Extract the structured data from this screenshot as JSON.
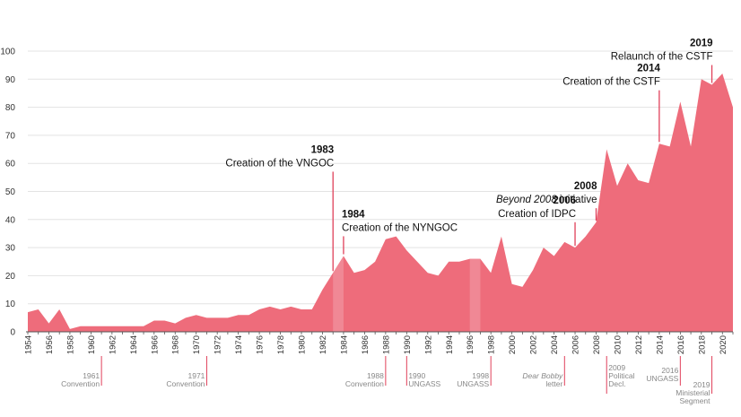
{
  "chart_data": {
    "type": "area",
    "title": "",
    "xlabel": "",
    "ylabel": "",
    "xlim": [
      1954,
      2021
    ],
    "ylim": [
      0,
      100
    ],
    "yticks": [
      0,
      10,
      20,
      30,
      40,
      50,
      60,
      70,
      80,
      90,
      100
    ],
    "xticks": [
      1954,
      1956,
      1958,
      1960,
      1962,
      1964,
      1966,
      1968,
      1970,
      1972,
      1974,
      1976,
      1978,
      1980,
      1982,
      1984,
      1986,
      1988,
      1990,
      1992,
      1994,
      1996,
      1998,
      2000,
      2002,
      2004,
      2006,
      2008,
      2010,
      2012,
      2014,
      2016,
      2018,
      2020
    ],
    "colors": {
      "area": "#ee6c7b",
      "highlight": "#f3a0ab",
      "marker": "#e0405a"
    },
    "series": [
      {
        "name": "Value",
        "x": [
          1954,
          1955,
          1956,
          1957,
          1958,
          1959,
          1960,
          1961,
          1962,
          1963,
          1964,
          1965,
          1966,
          1967,
          1968,
          1969,
          1970,
          1971,
          1972,
          1973,
          1974,
          1975,
          1976,
          1977,
          1978,
          1979,
          1980,
          1981,
          1982,
          1983,
          1984,
          1985,
          1986,
          1987,
          1988,
          1989,
          1990,
          1991,
          1992,
          1993,
          1994,
          1995,
          1996,
          1997,
          1998,
          1999,
          2000,
          2001,
          2002,
          2003,
          2004,
          2005,
          2006,
          2007,
          2008,
          2009,
          2010,
          2011,
          2012,
          2013,
          2014,
          2015,
          2016,
          2017,
          2018,
          2019,
          2020,
          2021
        ],
        "values": [
          7,
          8,
          3,
          8,
          1,
          2,
          2,
          2,
          2,
          2,
          2,
          2,
          4,
          4,
          3,
          5,
          6,
          5,
          5,
          5,
          6,
          6,
          8,
          9,
          8,
          9,
          8,
          8,
          15,
          21,
          27,
          21,
          22,
          25,
          33,
          34,
          29,
          25,
          21,
          20,
          25,
          25,
          26,
          26,
          21,
          34,
          17,
          16,
          22,
          30,
          27,
          32,
          30,
          34,
          39,
          65,
          52,
          60,
          54,
          53,
          67,
          66,
          82,
          66,
          90,
          88,
          92,
          80
        ]
      }
    ],
    "highlight_bands": [
      [
        1983,
        1984
      ],
      [
        1996,
        1997
      ]
    ],
    "events": [
      {
        "year_label": "1983",
        "text": "Creation of the VNGOC",
        "year": 1983,
        "top": 58
      },
      {
        "year_label": "1984",
        "text": "Creation of the NYNGOC",
        "year": 1984,
        "top": 35
      },
      {
        "year_label": "2006",
        "text": "Creation of IDPC",
        "year": 2006,
        "top": 40
      },
      {
        "year_label": "2008",
        "text": "initiative",
        "italic_prefix": "Beyond 2008",
        "year": 2008,
        "top": 45
      },
      {
        "year_label": "2014",
        "text": "Creation of the CSTF",
        "year": 2014,
        "top": 87
      },
      {
        "year_label": "2019",
        "text": "Relaunch of the CSTF",
        "year": 2019,
        "top": 96
      }
    ],
    "milestones": [
      {
        "year": 1961,
        "lines": [
          "1961",
          "Convention"
        ],
        "italic": false
      },
      {
        "year": 1971,
        "lines": [
          "1971",
          "Convention"
        ],
        "italic": false
      },
      {
        "year": 1988,
        "lines": [
          "1988",
          "Convention"
        ],
        "italic": false
      },
      {
        "year": 1990,
        "lines": [
          "1990",
          "UNGASS"
        ],
        "italic": false
      },
      {
        "year": 1998,
        "lines": [
          "1998",
          "UNGASS"
        ],
        "italic": false
      },
      {
        "year": 2005,
        "lines": [
          "Dear Bobby",
          "letter"
        ],
        "italic": true
      },
      {
        "year": 2009,
        "lines": [
          "2009",
          "Political",
          "Decl."
        ],
        "italic": false
      },
      {
        "year": 2016,
        "lines": [
          "2016",
          "UNGASS"
        ],
        "italic": false
      },
      {
        "year": 2019,
        "lines": [
          "2019",
          "Ministerial",
          "Segment"
        ],
        "italic": false
      }
    ]
  }
}
